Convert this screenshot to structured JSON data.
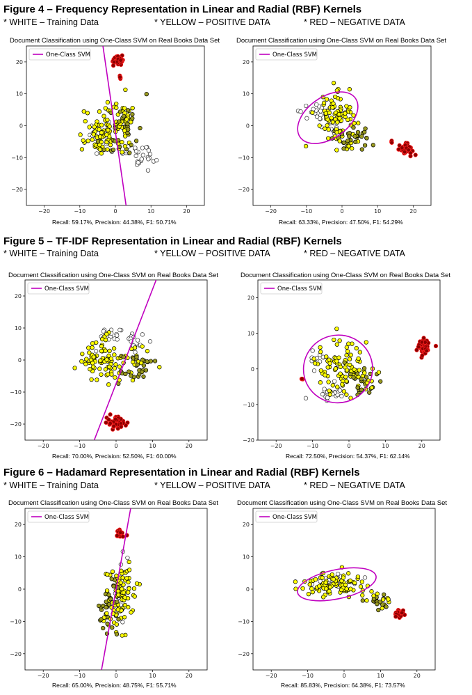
{
  "sections": [
    {
      "title": "Figure 4 – Frequency Representation in Linear and Radial (RBF) Kernels",
      "keys": [
        "* WHITE – Training Data",
        "* YELLOW – POSITIVE DATA",
        "* RED – NEGATIVE DATA"
      ]
    },
    {
      "title": "Figure 5 – TF-IDF Representation in Linear and Radial (RBF) Kernels",
      "keys": [
        "* WHITE – Training Data",
        "* YELLOW – POSITIVE DATA",
        "* RED – NEGATIVE DATA"
      ]
    },
    {
      "title": "Figure 6 – Hadamard Representation in Linear and Radial (RBF) Kernels",
      "keys": [
        "* WHITE – Training Data",
        "* YELLOW – POSITIVE DATA",
        "* RED – NEGATIVE DATA"
      ]
    }
  ],
  "colors": {
    "training": "#ffffff",
    "positive": "#ffff00",
    "negative": "#8b0000",
    "negative_edge": "#ff2020",
    "boundary": "#c000c0"
  },
  "chart_data": [
    {
      "type": "scatter",
      "title": "Document Classification using One-Class SVM on Real Books Data Set",
      "metrics": "Recall: 59.17%,    Precision: 44.38%,    F1: 50.71%",
      "legend": "One-Class SVM",
      "xlim": [
        -25,
        25
      ],
      "ylim": [
        -25,
        25
      ],
      "xticks": [
        -20,
        -10,
        0,
        10,
        20
      ],
      "yticks": [
        20,
        10,
        0,
        -10,
        -20
      ],
      "boundary": {
        "kind": "line",
        "points": [
          [
            -3.5,
            25
          ],
          [
            3,
            -25
          ]
        ]
      },
      "clusters": [
        {
          "class": "training",
          "cx": 7,
          "cy": -9,
          "sx": 2.2,
          "sy": 2,
          "n": 28
        },
        {
          "class": "training",
          "cx": -4,
          "cy": -4,
          "sx": 2.5,
          "sy": 2.5,
          "n": 14
        },
        {
          "class": "positive",
          "cx": -4.5,
          "cy": -2.5,
          "sx": 2.8,
          "sy": 3.5,
          "n": 70
        },
        {
          "class": "positive",
          "cx": 1,
          "cy": 2,
          "sx": 2,
          "sy": 3,
          "n": 25
        },
        {
          "class": "positive_dark",
          "cx": 2,
          "cy": -1,
          "sx": 2.5,
          "sy": 4.5,
          "n": 45
        },
        {
          "class": "negative",
          "cx": 1,
          "cy": 20.5,
          "sx": 0.9,
          "sy": 0.7,
          "n": 40
        },
        {
          "class": "negative",
          "cx": 1.5,
          "cy": 15.5,
          "sx": 0.2,
          "sy": 0.4,
          "n": 4
        }
      ]
    },
    {
      "type": "scatter",
      "title": "Document Classification using One-Class SVM on Real Books Data Set",
      "metrics": "Recall: 63.33%,    Precision: 47.50%,    F1: 54.29%",
      "legend": "One-Class SVM",
      "xlim": [
        -25,
        25
      ],
      "ylim": [
        -25,
        25
      ],
      "xticks": [
        -20,
        -10,
        0,
        10,
        20
      ],
      "yticks": [
        20,
        10,
        0,
        -10,
        -20
      ],
      "boundary": {
        "kind": "ellipse",
        "cx": -4,
        "cy": 2.5,
        "rx": 9.5,
        "ry": 6.5,
        "angle": -35
      },
      "clusters": [
        {
          "class": "training",
          "cx": -8,
          "cy": 4,
          "sx": 2.5,
          "sy": 2,
          "n": 20
        },
        {
          "class": "training",
          "cx": -2.5,
          "cy": -1,
          "sx": 1.5,
          "sy": 1.5,
          "n": 10
        },
        {
          "class": "positive",
          "cx": -2,
          "cy": 3,
          "sx": 2.5,
          "sy": 3.5,
          "n": 75
        },
        {
          "class": "positive_dark",
          "cx": 2,
          "cy": -4,
          "sx": 3,
          "sy": 1.6,
          "n": 45
        },
        {
          "class": "negative",
          "cx": 18,
          "cy": -7.5,
          "sx": 0.9,
          "sy": 0.8,
          "n": 45
        },
        {
          "class": "negative",
          "cx": 14,
          "cy": -5,
          "sx": 0.2,
          "sy": 0.2,
          "n": 3
        }
      ]
    },
    {
      "type": "scatter",
      "title": "Document Classification using One-Class SVM on Real Books Data Set",
      "metrics": "Recall: 70.00%,    Precision: 52.50%,    F1: 60.00%",
      "legend": "One-Class SVM",
      "xlim": [
        -25,
        25
      ],
      "ylim": [
        -25,
        25
      ],
      "xticks": [
        -20,
        -10,
        0,
        10,
        20
      ],
      "yticks": [
        20,
        10,
        0,
        -10,
        -20
      ],
      "boundary": {
        "kind": "line",
        "points": [
          [
            -6,
            -25
          ],
          [
            11,
            25
          ]
        ]
      },
      "clusters": [
        {
          "class": "training",
          "cx": -1,
          "cy": 8,
          "sx": 3,
          "sy": 1.5,
          "n": 18
        },
        {
          "class": "training",
          "cx": 6,
          "cy": 6,
          "sx": 1.5,
          "sy": 1.8,
          "n": 14
        },
        {
          "class": "positive",
          "cx": -4,
          "cy": 0,
          "sx": 3,
          "sy": 3.5,
          "n": 80
        },
        {
          "class": "positive_dark",
          "cx": 6,
          "cy": -1,
          "sx": 2.5,
          "sy": 2.5,
          "n": 45
        },
        {
          "class": "negative",
          "cx": 0,
          "cy": -19.5,
          "sx": 1,
          "sy": 0.9,
          "n": 45
        }
      ]
    },
    {
      "type": "scatter",
      "title": "Document Classification using One-Class SVM on Real Books Data Set",
      "metrics": "Recall: 72.50%,    Precision: 54.37%,    F1: 62.14%",
      "legend": "One-Class SVM",
      "xlim": [
        -25,
        25
      ],
      "ylim": [
        -20,
        25
      ],
      "xticks": [
        -20,
        -10,
        0,
        10,
        20
      ],
      "yticks": [
        20,
        10,
        0,
        -10,
        -20
      ],
      "boundary": {
        "kind": "ellipse",
        "cx": -3,
        "cy": 0,
        "rx": 9.5,
        "ry": 9.5,
        "angle": -15
      },
      "clusters": [
        {
          "class": "training",
          "cx": -5,
          "cy": -7,
          "sx": 2.5,
          "sy": 1.2,
          "n": 20
        },
        {
          "class": "training",
          "cx": -9,
          "cy": 3,
          "sx": 1.5,
          "sy": 1.5,
          "n": 10
        },
        {
          "class": "positive",
          "cx": -2,
          "cy": 1,
          "sx": 3.5,
          "sy": 3.5,
          "n": 85
        },
        {
          "class": "positive_dark",
          "cx": 3,
          "cy": -3,
          "sx": 2.5,
          "sy": 2.5,
          "n": 35
        },
        {
          "class": "negative",
          "cx": 20.5,
          "cy": 6,
          "sx": 1,
          "sy": 1.2,
          "n": 45
        },
        {
          "class": "negative",
          "cx": -13,
          "cy": -3,
          "sx": 0.4,
          "sy": 0.3,
          "n": 4
        }
      ]
    },
    {
      "type": "scatter",
      "title": "Document Classification using One-Class SVM on Real Books Data Set",
      "metrics": "Recall: 65.00%,    Precision: 48.75%,    F1: 55.71%",
      "legend": "One-Class SVM",
      "xlim": [
        -25,
        25
      ],
      "ylim": [
        -25,
        25
      ],
      "xticks": [
        -20,
        -10,
        0,
        10,
        20
      ],
      "yticks": [
        20,
        10,
        0,
        -10,
        -20
      ],
      "boundary": {
        "kind": "line",
        "points": [
          [
            -4,
            -25
          ],
          [
            4,
            25
          ]
        ]
      },
      "clusters": [
        {
          "class": "training",
          "cx": 1,
          "cy": -1,
          "sx": 1,
          "sy": 5,
          "n": 18
        },
        {
          "class": "positive",
          "cx": 1.5,
          "cy": -2,
          "sx": 1.8,
          "sy": 5.5,
          "n": 80
        },
        {
          "class": "positive_dark",
          "cx": -2,
          "cy": -6,
          "sx": 1.3,
          "sy": 5,
          "n": 45
        },
        {
          "class": "negative",
          "cx": 1,
          "cy": 17,
          "sx": 0.5,
          "sy": 0.6,
          "n": 30
        }
      ]
    },
    {
      "type": "scatter",
      "title": "Document Classification using One-Class SVM on Real Books Data Set",
      "metrics": "Recall: 85.83%,    Precision: 64.38%,    F1: 73.57%",
      "legend": "One-Class SVM",
      "xlim": [
        -25,
        25
      ],
      "ylim": [
        -25,
        25
      ],
      "xticks": [
        -20,
        -10,
        0,
        10,
        20
      ],
      "yticks": [
        20,
        10,
        0,
        -10,
        -20
      ],
      "boundary": {
        "kind": "ellipse",
        "cx": -2,
        "cy": 1.5,
        "rx": 11,
        "ry": 4.5,
        "angle": -12
      },
      "clusters": [
        {
          "class": "training",
          "cx": -3,
          "cy": 2.5,
          "sx": 4,
          "sy": 1.2,
          "n": 25
        },
        {
          "class": "positive",
          "cx": -2,
          "cy": 1.5,
          "sx": 5,
          "sy": 1.8,
          "n": 90
        },
        {
          "class": "positive_dark",
          "cx": 9,
          "cy": -4,
          "sx": 2.5,
          "sy": 1.2,
          "n": 25
        },
        {
          "class": "negative",
          "cx": 15,
          "cy": -7.5,
          "sx": 0.5,
          "sy": 0.5,
          "n": 30
        }
      ]
    }
  ]
}
